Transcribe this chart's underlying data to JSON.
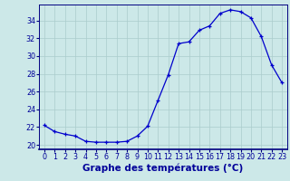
{
  "hours": [
    0,
    1,
    2,
    3,
    4,
    5,
    6,
    7,
    8,
    9,
    10,
    11,
    12,
    13,
    14,
    15,
    16,
    17,
    18,
    19,
    20,
    21,
    22,
    23
  ],
  "temperatures": [
    22.2,
    21.5,
    21.2,
    21.0,
    20.4,
    20.3,
    20.3,
    20.3,
    20.4,
    21.0,
    22.1,
    25.0,
    27.9,
    31.4,
    31.6,
    32.9,
    33.4,
    34.8,
    35.2,
    35.0,
    34.3,
    32.2,
    29.0,
    27.0
  ],
  "xlabel": "Graphe des températures (°C)",
  "line_color": "#0000cc",
  "marker_color": "#0000cc",
  "bg_color": "#cce8e8",
  "grid_color": "#aacccc",
  "axis_color": "#000080",
  "ylim": [
    19.5,
    35.8
  ],
  "yticks": [
    20,
    22,
    24,
    26,
    28,
    30,
    32,
    34
  ],
  "xlim": [
    -0.5,
    23.5
  ],
  "xlabel_color": "#000099",
  "tick_color": "#000099",
  "tick_fontsize": 5.8,
  "xlabel_fontsize": 7.5,
  "xlabel_bold": true
}
